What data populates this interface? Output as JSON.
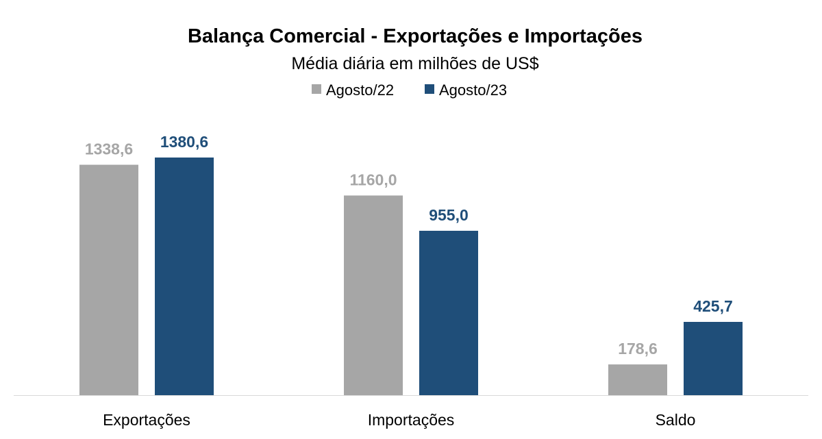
{
  "chart_data": {
    "type": "bar",
    "title": "Balança Comercial - Exportações e Importações",
    "subtitle": "Média diária em milhões de US$",
    "categories": [
      "Exportações",
      "Importações",
      "Saldo"
    ],
    "series": [
      {
        "name": "Agosto/22",
        "values": [
          1338.6,
          1160.0,
          178.6
        ],
        "labels": [
          "1338,6",
          "1160,0",
          "178,6"
        ],
        "color": "#a6a6a6"
      },
      {
        "name": "Agosto/23",
        "values": [
          1380.6,
          955.0,
          425.7
        ],
        "labels": [
          "1380,6",
          "955,0",
          "425,7"
        ],
        "color": "#1f4e79"
      }
    ],
    "ylim": [
      0,
      1380.6
    ],
    "legend_position": "top",
    "grid": false
  }
}
